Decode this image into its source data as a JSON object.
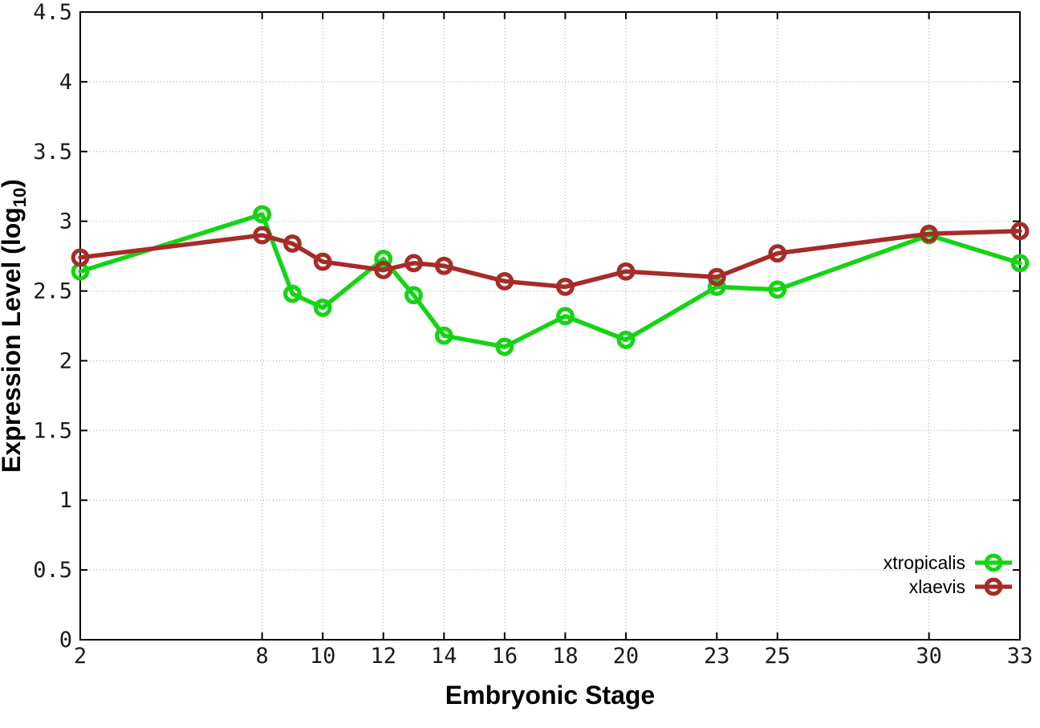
{
  "chart_data": {
    "type": "line",
    "title": "",
    "xlabel": "Embryonic Stage",
    "ylabel": "Expression Level (log10)",
    "ylabel_parts": {
      "main": "Expression Level (log",
      "sub": "10",
      "end": ")"
    },
    "xlim": [
      2,
      33
    ],
    "ylim": [
      0,
      4.5
    ],
    "grid": true,
    "legend_position": "bottom-right",
    "x_ticks": [
      2,
      8,
      10,
      12,
      14,
      16,
      18,
      20,
      23,
      25,
      30,
      33
    ],
    "x_tick_labels": [
      "2",
      "8",
      "10",
      "12",
      "14",
      "16",
      "18",
      "20",
      "23",
      "25",
      "30",
      "33"
    ],
    "y_ticks": [
      0,
      0.5,
      1,
      1.5,
      2,
      2.5,
      3,
      3.5,
      4,
      4.5
    ],
    "y_tick_labels": [
      "0",
      "0.5",
      "1",
      "1.5",
      "2",
      "2.5",
      "3",
      "3.5",
      "4",
      "4.5"
    ],
    "x": [
      2,
      8,
      9,
      10,
      12,
      13,
      14,
      16,
      18,
      20,
      23,
      25,
      30,
      33
    ],
    "series": [
      {
        "name": "xtropicalis",
        "color": "#15d415",
        "marker": "open-circle",
        "values": [
          2.64,
          3.05,
          2.48,
          2.38,
          2.73,
          2.47,
          2.18,
          2.1,
          2.32,
          2.15,
          2.53,
          2.51,
          2.9,
          2.7
        ]
      },
      {
        "name": "xlaevis",
        "color": "#a52c28",
        "marker": "open-circle",
        "values": [
          2.74,
          2.9,
          2.84,
          2.71,
          2.65,
          2.7,
          2.68,
          2.57,
          2.53,
          2.64,
          2.6,
          2.77,
          2.91,
          2.93
        ]
      }
    ],
    "colors": {
      "border": "#000000",
      "grid": "#b3b3b3",
      "tick_label": "#1b1b1b"
    }
  }
}
